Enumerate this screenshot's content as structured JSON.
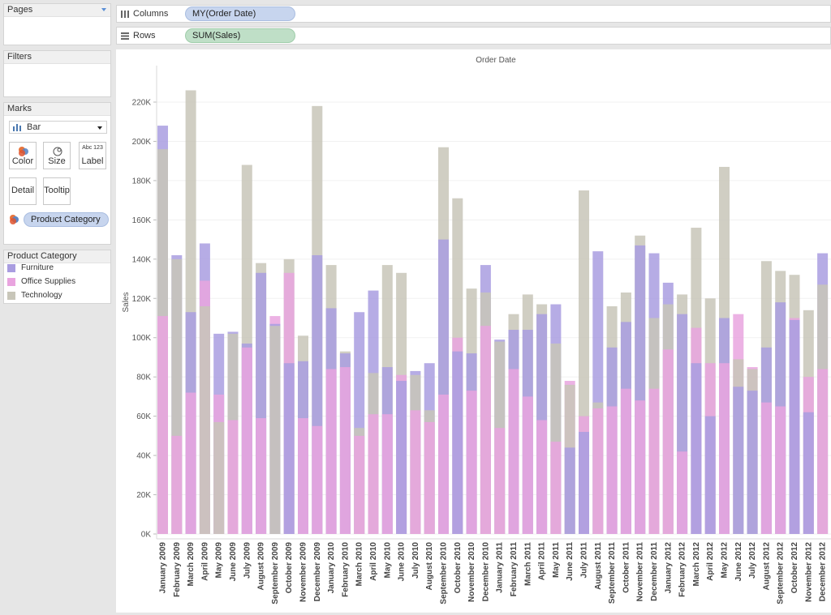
{
  "left_panel": {
    "pages_title": "Pages",
    "filters_title": "Filters",
    "marks_title": "Marks",
    "mark_type": "Bar",
    "mark_buttons": {
      "color": "Color",
      "size": "Size",
      "label": "Label",
      "label_icon": "Abc 123",
      "detail": "Detail",
      "tooltip": "Tooltip"
    },
    "color_pill": "Product Category",
    "legend": {
      "title": "Product Category",
      "items": [
        {
          "label": "Furniture",
          "color": "#a99de0"
        },
        {
          "label": "Office Supplies",
          "color": "#e9a4df"
        },
        {
          "label": "Technology",
          "color": "#c8c6b9"
        }
      ]
    }
  },
  "shelves": {
    "columns_label": "Columns",
    "columns_pill": "MY(Order Date)",
    "rows_label": "Rows",
    "rows_pill": "SUM(Sales)"
  },
  "colors": {
    "furniture": "#a99de0",
    "office_supplies": "#e9a4df",
    "technology": "#c8c6b9",
    "columns_pill": "#c7d5ee",
    "rows_pill": "#bfdfc7"
  },
  "chart_data": {
    "type": "bar",
    "title": "Order Date",
    "xlabel": "",
    "ylabel": "Sales",
    "ylim": [
      0,
      220000
    ],
    "yticks": [
      "0K",
      "20K",
      "40K",
      "60K",
      "80K",
      "100K",
      "120K",
      "140K",
      "160K",
      "180K",
      "200K",
      "220K"
    ],
    "ytick_values": [
      0,
      20000,
      40000,
      60000,
      80000,
      100000,
      120000,
      140000,
      160000,
      180000,
      200000,
      220000
    ],
    "categories": [
      "January 2009",
      "February 2009",
      "March 2009",
      "April 2009",
      "May 2009",
      "June 2009",
      "July 2009",
      "August 2009",
      "September 2009",
      "October 2009",
      "November 2009",
      "December 2009",
      "January 2010",
      "February 2010",
      "March 2010",
      "April 2010",
      "May 2010",
      "June 2010",
      "July 2010",
      "August 2010",
      "September 2010",
      "October 2010",
      "November 2010",
      "December 2010",
      "January 2011",
      "February 2011",
      "March 2011",
      "April 2011",
      "May 2011",
      "June 2011",
      "July 2011",
      "August 2011",
      "September 2011",
      "October 2011",
      "November 2011",
      "December 2011",
      "January 2012",
      "February 2012",
      "March 2012",
      "April 2012",
      "May 2012",
      "June 2012",
      "July 2012",
      "August 2012",
      "September 2012",
      "October 2012",
      "November 2012",
      "December 2012"
    ],
    "series": [
      {
        "name": "Furniture",
        "color": "#a99de0",
        "values": [
          208000,
          142000,
          113000,
          148000,
          102000,
          103000,
          97000,
          133000,
          107000,
          87000,
          88000,
          142000,
          115000,
          92000,
          113000,
          124000,
          85000,
          78000,
          83000,
          87000,
          150000,
          93000,
          92000,
          137000,
          99000,
          104000,
          104000,
          112000,
          117000,
          44000,
          52000,
          144000,
          95000,
          108000,
          147000,
          143000,
          128000,
          112000,
          87000,
          60000,
          110000,
          75000,
          73000,
          95000,
          118000,
          109000,
          62000,
          143000
        ]
      },
      {
        "name": "Office Supplies",
        "color": "#e9a4df",
        "values": [
          111000,
          50000,
          72000,
          129000,
          71000,
          58000,
          95000,
          59000,
          111000,
          133000,
          59000,
          55000,
          84000,
          85000,
          50000,
          61000,
          61000,
          81000,
          63000,
          57000,
          71000,
          100000,
          73000,
          106000,
          54000,
          84000,
          70000,
          58000,
          47000,
          78000,
          60000,
          64000,
          65000,
          74000,
          68000,
          74000,
          94000,
          42000,
          105000,
          87000,
          87000,
          112000,
          85000,
          67000,
          65000,
          110000,
          80000,
          84000
        ]
      },
      {
        "name": "Technology",
        "color": "#c8c6b9",
        "values": [
          196000,
          140000,
          226000,
          116000,
          57000,
          102000,
          188000,
          138000,
          106000,
          140000,
          101000,
          218000,
          137000,
          93000,
          54000,
          82000,
          137000,
          133000,
          81000,
          63000,
          197000,
          171000,
          125000,
          123000,
          98000,
          112000,
          122000,
          117000,
          97000,
          76000,
          175000,
          67000,
          116000,
          123000,
          152000,
          110000,
          117000,
          122000,
          156000,
          120000,
          187000,
          89000,
          84000,
          139000,
          134000,
          132000,
          114000,
          127000
        ]
      }
    ]
  }
}
